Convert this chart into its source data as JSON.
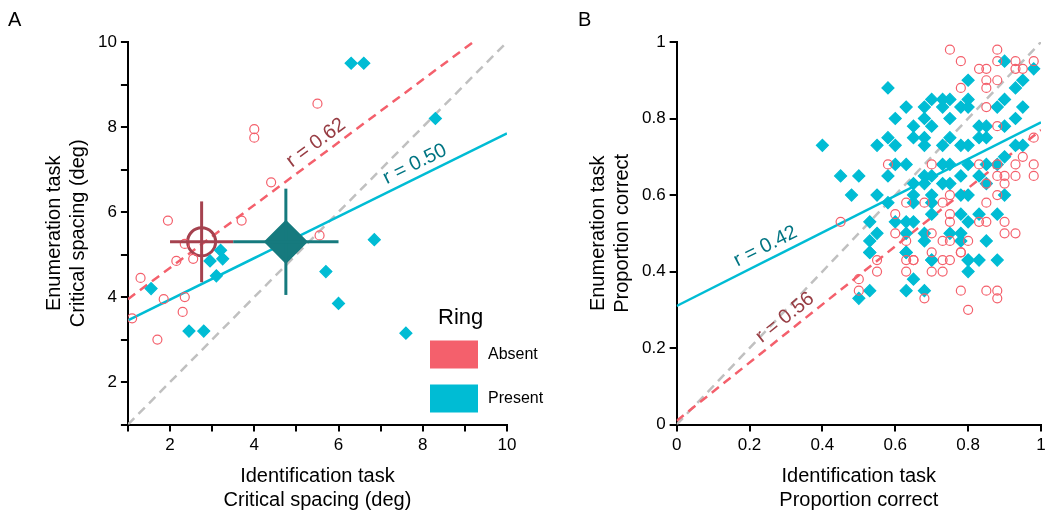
{
  "chart_data": [
    {
      "type": "scatter",
      "title": "A",
      "xlabel": "Identification task\nCritical spacing (deg)",
      "ylabel": "Enumeration task\nCritical spacing (deg)",
      "legend_title": "Ring",
      "legend": "bottom right",
      "grid": false,
      "xlim": [
        1,
        10
      ],
      "xticks": [
        {
          "value": 1,
          "label": null
        },
        2,
        {
          "value": 3,
          "label": null
        },
        4,
        {
          "value": 5,
          "label": null
        },
        6,
        {
          "value": 7,
          "label": null
        },
        8,
        {
          "value": 9,
          "label": null
        },
        10
      ],
      "ylim": [
        1,
        10
      ],
      "yticks": [
        {
          "value": 1,
          "label": null
        },
        2,
        {
          "value": 3,
          "label": null
        },
        4,
        {
          "value": 5,
          "label": null
        },
        6,
        {
          "value": 7,
          "label": null
        },
        8,
        {
          "value": 9,
          "label": null
        },
        10
      ],
      "series": [
        {
          "name": "Absent",
          "type": "scatter",
          "marker": "circle",
          "color": "#f4606c",
          "x": [
            5.5,
            4.0,
            4.0,
            4.4,
            3.7,
            1.95,
            5.55,
            2.35,
            2.55,
            2.15,
            1.3,
            1.85,
            2.35,
            2.3,
            1.1,
            1.7
          ],
          "values": [
            8.55,
            7.95,
            7.75,
            6.7,
            5.8,
            5.8,
            5.45,
            5.25,
            4.9,
            4.85,
            4.45,
            3.95,
            4.0,
            3.65,
            3.5,
            3.0
          ]
        },
        {
          "name": "Present",
          "type": "scatter",
          "marker": "diamond",
          "color": "#00bcd4",
          "x": [
            6.3,
            6.6,
            8.3,
            1.55,
            2.95,
            3.25,
            3.2,
            3.1,
            5.7,
            6.85,
            6.0,
            7.6,
            2.45,
            2.8
          ],
          "values": [
            9.5,
            9.5,
            8.2,
            4.2,
            4.85,
            4.9,
            5.1,
            4.5,
            4.6,
            5.35,
            3.85,
            3.15,
            3.2,
            3.2
          ]
        },
        {
          "type": "scatter",
          "marker": "circle",
          "color": "#a5424f",
          "x": [
            2.75
          ],
          "values": [
            5.3
          ],
          "errors": [
            0.95
          ],
          "xerrors": [
            0.75
          ]
        },
        {
          "type": "scatter",
          "marker": "diamond",
          "color": "#167a7e",
          "x": [
            4.75
          ],
          "values": [
            5.3
          ],
          "errors": [
            1.25
          ],
          "xerrors": [
            1.25
          ]
        },
        {
          "type": "line",
          "line_style": "dashed",
          "color": "#f4606c",
          "x": [
            1,
            9.2
          ],
          "values": [
            3.95,
            10
          ]
        },
        {
          "type": "line",
          "line_style": "solid",
          "color": "#00bcd4",
          "x": [
            1,
            10
          ],
          "values": [
            3.45,
            7.85
          ]
        },
        {
          "type": "line",
          "line_style": "dashed",
          "color": "#c0c0c0",
          "x": [
            1,
            10
          ],
          "values": [
            1,
            10
          ]
        }
      ],
      "annotations": [
        {
          "text": "r = 0.62",
          "x": 5.65,
          "y": 7.38
        },
        {
          "text": "r = 0.50",
          "x": 7.95,
          "y": 6.85
        }
      ]
    },
    {
      "type": "scatter",
      "title": "B",
      "xlabel": "Identification task\nProportion correct",
      "ylabel": "Enumeration task\nProportion correct",
      "grid": false,
      "xlim": [
        0,
        1
      ],
      "xticks": [
        0,
        0.2,
        0.4,
        0.6,
        0.8,
        1
      ],
      "ylim": [
        0,
        1
      ],
      "yticks": [
        0,
        0.2,
        0.4,
        0.6,
        0.8,
        1
      ],
      "series": [
        {
          "type": "scatter",
          "marker": "circle",
          "color": "#f4606c",
          "x": [
            0.75,
            0.78,
            0.88,
            0.88,
            0.93,
            0.98,
            0.83,
            0.85,
            0.85,
            0.88,
            0.78,
            0.85,
            0.93,
            0.95,
            0.85,
            0.88,
            0.98,
            0.95,
            0.98,
            0.98,
            0.93,
            0.9,
            0.88,
            0.88,
            0.85,
            0.9,
            0.88,
            0.93,
            0.83,
            0.75,
            0.7,
            0.58,
            0.63,
            0.6,
            0.68,
            0.73,
            0.75,
            0.85,
            0.45,
            0.6,
            0.63,
            0.7,
            0.73,
            0.75,
            0.83,
            0.85,
            0.9,
            0.93,
            0.9,
            0.75,
            0.78,
            0.7,
            0.55,
            0.65,
            0.63,
            0.73,
            0.8,
            0.5,
            0.5,
            0.55,
            0.63,
            0.65,
            0.7,
            0.73,
            0.75,
            0.78,
            0.78,
            0.8,
            0.68,
            0.85,
            0.88,
            0.88
          ],
          "values": [
            0.98,
            0.95,
            0.98,
            0.95,
            0.95,
            0.95,
            0.93,
            0.93,
            0.9,
            0.9,
            0.88,
            0.88,
            0.93,
            0.93,
            0.83,
            0.78,
            0.75,
            0.7,
            0.68,
            0.65,
            0.68,
            0.65,
            0.65,
            0.68,
            0.63,
            0.63,
            0.6,
            0.65,
            0.68,
            0.6,
            0.68,
            0.68,
            0.58,
            0.55,
            0.58,
            0.58,
            0.55,
            0.58,
            0.53,
            0.5,
            0.48,
            0.5,
            0.48,
            0.53,
            0.53,
            0.53,
            0.53,
            0.5,
            0.5,
            0.48,
            0.45,
            0.45,
            0.43,
            0.43,
            0.43,
            0.43,
            0.48,
            0.38,
            0.35,
            0.4,
            0.4,
            0.43,
            0.4,
            0.4,
            0.43,
            0.45,
            0.35,
            0.3,
            0.33,
            0.35,
            0.35,
            0.33
          ]
        },
        {
          "type": "scatter",
          "marker": "diamond",
          "color": "#00bcd4",
          "x": [
            0.4,
            0.45,
            0.5,
            0.48,
            0.58,
            0.55,
            0.55,
            0.58,
            0.6,
            0.6,
            0.63,
            0.58,
            0.6,
            0.63,
            0.58,
            0.53,
            0.55,
            0.53,
            0.53,
            0.65,
            0.68,
            0.68,
            0.7,
            0.73,
            0.75,
            0.73,
            0.75,
            0.78,
            0.8,
            0.8,
            0.8,
            0.68,
            0.7,
            0.65,
            0.68,
            0.73,
            0.75,
            0.78,
            0.8,
            0.83,
            0.85,
            0.85,
            0.83,
            0.88,
            0.9,
            0.9,
            0.93,
            0.95,
            0.95,
            0.98,
            0.93,
            0.9,
            0.93,
            0.95,
            0.9,
            0.85,
            0.88,
            0.83,
            0.8,
            0.78,
            0.75,
            0.73,
            0.7,
            0.68,
            0.65,
            0.68,
            0.7,
            0.73,
            0.75,
            0.78,
            0.8,
            0.85,
            0.9,
            0.65,
            0.65,
            0.7,
            0.7,
            0.78,
            0.8,
            0.83,
            0.88,
            0.63,
            0.65,
            0.63,
            0.68,
            0.75,
            0.78,
            0.68,
            0.78,
            0.85,
            0.63,
            0.7,
            0.8,
            0.6,
            0.5,
            0.53,
            0.63,
            0.65,
            0.68,
            0.7,
            0.8,
            0.83,
            0.88,
            0.8,
            0.53,
            0.63
          ],
          "values": [
            0.73,
            0.65,
            0.65,
            0.6,
            0.88,
            0.73,
            0.6,
            0.75,
            0.73,
            0.8,
            0.83,
            0.65,
            0.68,
            0.68,
            0.58,
            0.53,
            0.5,
            0.48,
            0.45,
            0.78,
            0.8,
            0.83,
            0.85,
            0.85,
            0.85,
            0.83,
            0.8,
            0.83,
            0.85,
            0.9,
            0.83,
            0.75,
            0.78,
            0.75,
            0.73,
            0.73,
            0.75,
            0.73,
            0.73,
            0.78,
            0.78,
            0.75,
            0.75,
            0.83,
            0.85,
            0.95,
            0.88,
            0.9,
            0.83,
            0.93,
            0.8,
            0.78,
            0.73,
            0.73,
            0.7,
            0.68,
            0.68,
            0.65,
            0.68,
            0.65,
            0.68,
            0.68,
            0.65,
            0.65,
            0.63,
            0.63,
            0.6,
            0.63,
            0.63,
            0.6,
            0.6,
            0.63,
            0.6,
            0.6,
            0.58,
            0.58,
            0.55,
            0.55,
            0.53,
            0.55,
            0.55,
            0.53,
            0.53,
            0.5,
            0.5,
            0.5,
            0.5,
            0.48,
            0.48,
            0.48,
            0.45,
            0.43,
            0.43,
            0.53,
            0.33,
            0.35,
            0.35,
            0.38,
            0.35,
            0.43,
            0.43,
            0.43,
            0.43,
            0.4,
            0.45,
            0.45
          ]
        },
        {
          "type": "line",
          "line_style": "dashed",
          "color": "#f4606c",
          "x": [
            0,
            1
          ],
          "values": [
            0.01,
            0.77
          ]
        },
        {
          "type": "line",
          "line_style": "solid",
          "color": "#00bcd4",
          "x": [
            0,
            1
          ],
          "values": [
            0.31,
            0.79
          ]
        },
        {
          "type": "line",
          "line_style": "dashed",
          "color": "#c0c0c0",
          "x": [
            0,
            1
          ],
          "values": [
            0,
            1
          ]
        }
      ],
      "annotations": [
        {
          "text": "r = 0.42",
          "x": 0.26,
          "y": 0.435
        },
        {
          "text": "r = 0.56",
          "x": 0.32,
          "y": 0.253
        }
      ]
    }
  ]
}
